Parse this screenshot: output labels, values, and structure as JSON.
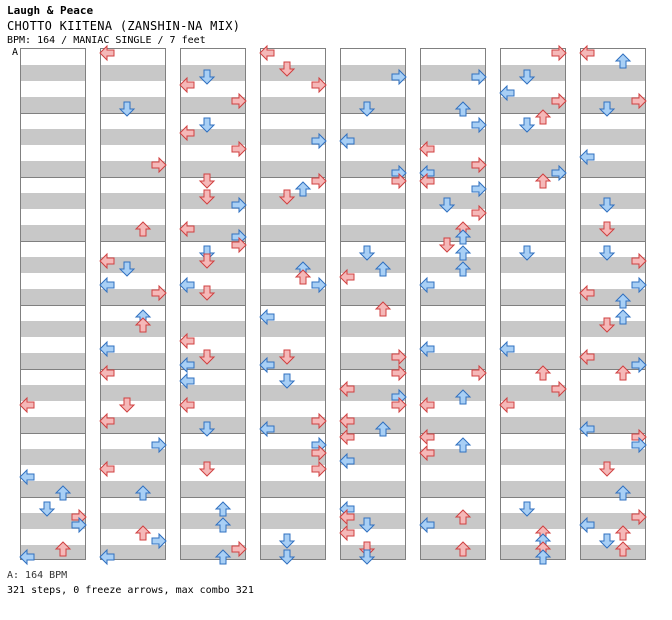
{
  "header": {
    "artist": "Laugh & Peace",
    "title": "CHOTTO KIITENA (ZANSHIN-NA MIX)",
    "info": "BPM: 164 / MANIAC SINGLE / 7 feet"
  },
  "section_marker": "A",
  "footer": {
    "bpm_line": "A: 164 BPM",
    "stats_line": "321 steps, 0 freeze arrows, max combo 321"
  },
  "colors": {
    "quarter_fill": "#f5b8b8",
    "quarter_stroke": "#d04040",
    "eighth_fill": "#a8cff5",
    "eighth_stroke": "#3070c0",
    "stripe": "#c8c8c8"
  }
}
